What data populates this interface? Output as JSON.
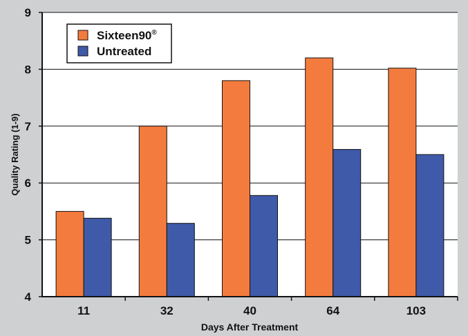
{
  "chart_data": {
    "type": "bar",
    "title": "",
    "xlabel": "Days After Treatment",
    "ylabel": "Quality Rating (1-9)",
    "categories": [
      "11",
      "32",
      "40",
      "64",
      "103"
    ],
    "ylim": [
      4,
      9
    ],
    "yticks": [
      "4",
      "5",
      "6",
      "7",
      "8",
      "9"
    ],
    "grid": "horizontal",
    "legend_position": "top-left",
    "series": [
      {
        "name": "Sixteen90",
        "name_mark": "®",
        "color": "#f47b3e",
        "values": [
          5.5,
          7.0,
          7.8,
          8.2,
          8.02
        ]
      },
      {
        "name": "Untreated",
        "name_mark": "",
        "color": "#3f5aa8",
        "values": [
          5.38,
          5.29,
          5.78,
          6.59,
          6.5
        ]
      }
    ]
  }
}
